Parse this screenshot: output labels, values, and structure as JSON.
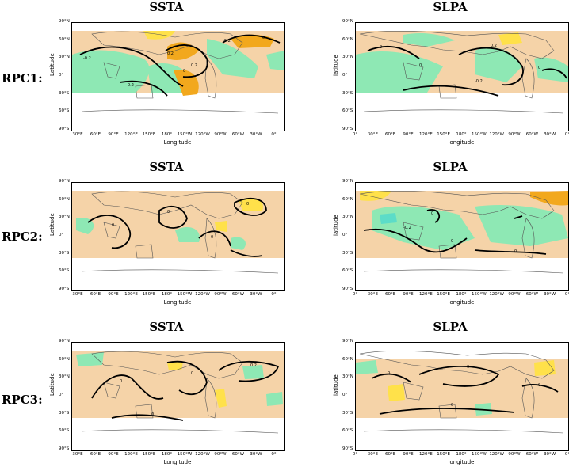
{
  "row_labels": [
    "RPC1:",
    "RPC2:",
    "RPC3:"
  ],
  "colors": {
    "positive_light": "#f5d3a8",
    "positive_mid": "#ffe14a",
    "positive_strong": "#f2a81d",
    "negative": "#8ee8b4",
    "negative_strong": "#5cdcc8",
    "contour": "#000000",
    "coast": "#555555"
  },
  "panels": [
    {
      "title": "SSTA",
      "lat_axis_title": "Latitude",
      "lon_axis_title": "Longitude",
      "lat_ticks": [
        "90°N",
        "60°N",
        "30°N",
        "0°",
        "30°S",
        "60°S",
        "90°S"
      ],
      "lon_ticks": [
        "30°E",
        "60°E",
        "90°E",
        "120°E",
        "150°E",
        "180°",
        "150°W",
        "120°W",
        "90°W",
        "60°W",
        "30°W",
        "0°"
      ],
      "contour_labels": [
        "-0.2",
        "0.2",
        "0",
        "-0.2",
        "0.2",
        "0",
        "0.2"
      ]
    },
    {
      "title": "SLPA",
      "lat_axis_title": "latitude",
      "lon_axis_title": "longitude",
      "lat_ticks": [
        "90°N",
        "60°N",
        "30°N",
        "0°",
        "30°S",
        "60°S",
        "90°S"
      ],
      "lon_ticks": [
        "0°",
        "30°E",
        "60°E",
        "90°E",
        "120°E",
        "150°E",
        "180°",
        "150°W",
        "120°W",
        "90°W",
        "60°W",
        "30°W",
        "0°"
      ],
      "contour_labels": [
        "0",
        "0.2",
        "0",
        "-0.2",
        "0"
      ]
    },
    {
      "title": "SSTA",
      "lat_axis_title": "Latitude",
      "lon_axis_title": "Longitude",
      "lat_ticks": [
        "90°N",
        "60°N",
        "30°N",
        "0°",
        "30°S",
        "60°S",
        "90°S"
      ],
      "lon_ticks": [
        "30°E",
        "60°E",
        "90°E",
        "120°E",
        "150°E",
        "180°",
        "150°W",
        "120°W",
        "90°W",
        "60°W",
        "30°W",
        "0°"
      ],
      "contour_labels": [
        "0",
        "0",
        "0",
        "0"
      ]
    },
    {
      "title": "SLPA",
      "lat_axis_title": "latitude",
      "lon_axis_title": "longitude",
      "lat_ticks": [
        "90°N",
        "60°N",
        "30°N",
        "0°",
        "30°S",
        "60°S",
        "90°S"
      ],
      "lon_ticks": [
        "0°",
        "30°E",
        "60°E",
        "90°E",
        "120°E",
        "150°E",
        "180°",
        "150°W",
        "120°W",
        "90°W",
        "60°W",
        "30°W",
        "0°"
      ],
      "contour_labels": [
        "-0.2",
        "0",
        "0",
        "0"
      ]
    },
    {
      "title": "SSTA",
      "lat_axis_title": "Latitude",
      "lon_axis_title": "Longitude",
      "lat_ticks": [
        "90°N",
        "60°N",
        "30°N",
        "0°",
        "30°S",
        "60°S",
        "90°S"
      ],
      "lon_ticks": [
        "30°E",
        "60°E",
        "90°E",
        "120°E",
        "150°E",
        "180°",
        "150°W",
        "120°W",
        "90°W",
        "60°W",
        "30°W",
        "0°"
      ],
      "contour_labels": [
        "0",
        "0",
        "0.2",
        "0"
      ]
    },
    {
      "title": "SLPA",
      "lat_axis_title": "latitude",
      "lon_axis_title": "longitude",
      "lat_ticks": [
        "90°N",
        "60°N",
        "30°N",
        "0°",
        "30°S",
        "60°S",
        "90°S"
      ],
      "lon_ticks": [
        "0°",
        "30°E",
        "60°E",
        "90°E",
        "120°E",
        "150°E",
        "180°",
        "150°W",
        "120°W",
        "90°W",
        "60°W",
        "30°W",
        "0°"
      ],
      "contour_labels": [
        "0",
        "0",
        "0",
        "0"
      ]
    }
  ]
}
